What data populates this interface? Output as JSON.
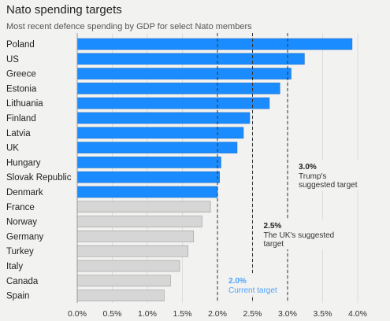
{
  "chart_data": {
    "type": "bar",
    "orientation": "horizontal",
    "title": "Nato spending targets",
    "subtitle": "Most recent defence spending by GDP for select Nato members",
    "categories": [
      "Poland",
      "US",
      "Greece",
      "Estonia",
      "Lithuania",
      "Finland",
      "Latvia",
      "UK",
      "Hungary",
      "Slovak Republic",
      "Denmark",
      "France",
      "Norway",
      "Germany",
      "Turkey",
      "Italy",
      "Canada",
      "Spain"
    ],
    "values": [
      3.92,
      3.24,
      3.05,
      2.89,
      2.74,
      2.46,
      2.37,
      2.28,
      2.05,
      2.03,
      2.0,
      1.9,
      1.78,
      1.66,
      1.58,
      1.46,
      1.33,
      1.24
    ],
    "highlight_count": 11,
    "xlim": [
      0,
      4
    ],
    "xticks": [
      "0.0%",
      "0.5%",
      "1.0%",
      "1.5%",
      "2.0%",
      "2.5%",
      "3.0%",
      "3.5%",
      "4.0%"
    ],
    "grid": true,
    "colors": {
      "highlight": "#1a8cff",
      "other": "#d6d6d6",
      "annotation_blue": "#4da3ff",
      "reference_line": "#333333"
    },
    "reference_lines": [
      {
        "value": 2.0,
        "label_value": "2.0%",
        "label_text": [
          "Current target"
        ],
        "color": "blue"
      },
      {
        "value": 2.5,
        "label_value": "2.5%",
        "label_text": [
          "The UK's suggested",
          "target"
        ],
        "color": "dark"
      },
      {
        "value": 3.0,
        "label_value": "3.0%",
        "label_text": [
          "Trump's",
          "suggested target"
        ],
        "color": "dark"
      }
    ]
  }
}
